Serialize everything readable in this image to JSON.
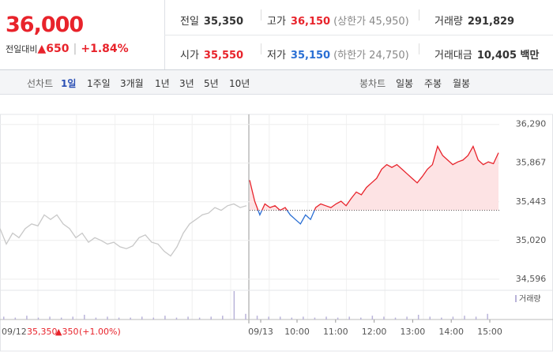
{
  "header": {
    "price": "36,000",
    "change_label": "전일대비",
    "change": "▲650",
    "change_pct": "+1.84%",
    "stats": [
      [
        "전일",
        "35,350",
        ""
      ],
      [
        "고가",
        "36,150",
        "(상한가 45,950)"
      ],
      [
        "거래량",
        "291,829",
        ""
      ],
      [
        "시가",
        "35,550",
        ""
      ],
      [
        "저가",
        "35,150",
        "(하한가 24,750)"
      ],
      [
        "거래대금",
        "10,405 백만",
        ""
      ]
    ]
  },
  "tabs": {
    "line_label": "선차트",
    "line": [
      "1일",
      "1주일",
      "3개월",
      "1년",
      "3년",
      "5년",
      "10년"
    ],
    "candle_label": "봉차트",
    "candle": [
      "일봉",
      "주봉",
      "월봉"
    ]
  },
  "footer": {
    "date": "09/12",
    "close": "35,350",
    "change": "▲350",
    "pct": "(+1.00%)"
  },
  "chart_data": {
    "type": "line",
    "baseline": 35350,
    "ylim": [
      34500,
      36400
    ],
    "yticks": [
      {
        "value": 36290,
        "label": "36,290"
      },
      {
        "value": 35867,
        "label": "35,867"
      },
      {
        "value": 35443,
        "label": "35,443"
      },
      {
        "value": 35020,
        "label": "35,020"
      },
      {
        "value": 34596,
        "label": "34,596"
      }
    ],
    "xticks": [
      "09/13",
      "10:00",
      "11:00",
      "12:00",
      "13:00",
      "14:00",
      "15:00"
    ],
    "series": [
      {
        "name": "09/12",
        "color": "#c8c8c8",
        "values": [
          35150,
          34980,
          35100,
          35050,
          35150,
          35200,
          35180,
          35300,
          35250,
          35300,
          35200,
          35150,
          35050,
          35100,
          35000,
          35050,
          35020,
          34980,
          35000,
          34950,
          34930,
          34960,
          35050,
          35080,
          35000,
          34980,
          34900,
          34850,
          34950,
          35100,
          35200,
          35250,
          35300,
          35320,
          35380,
          35350,
          35400,
          35420,
          35380,
          35400
        ]
      },
      {
        "name": "09/13",
        "color": "#e8232b",
        "down_color": "#2a6fd4",
        "values": [
          35680,
          35450,
          35300,
          35420,
          35380,
          35400,
          35350,
          35380,
          35300,
          35250,
          35200,
          35300,
          35250,
          35380,
          35420,
          35400,
          35380,
          35420,
          35450,
          35400,
          35480,
          35550,
          35520,
          35600,
          35650,
          35700,
          35800,
          35850,
          35820,
          35850,
          35800,
          35750,
          35700,
          35650,
          35720,
          35800,
          35850,
          36050,
          35950,
          35900,
          35850,
          35880,
          35900,
          35950,
          36050,
          35900,
          35850,
          35880,
          35860,
          35980
        ]
      }
    ],
    "volume": {
      "name": "거래량",
      "color": "#b9b3d9",
      "values": [
        3,
        2,
        4,
        2,
        3,
        2,
        3,
        5,
        2,
        3,
        2,
        2,
        3,
        2,
        4,
        2,
        3,
        2,
        3,
        4,
        30,
        6,
        4,
        3,
        3,
        2,
        3,
        2,
        3,
        2,
        3,
        2,
        4,
        3,
        2,
        3,
        5,
        3,
        2,
        3,
        4,
        3,
        6
      ]
    }
  }
}
